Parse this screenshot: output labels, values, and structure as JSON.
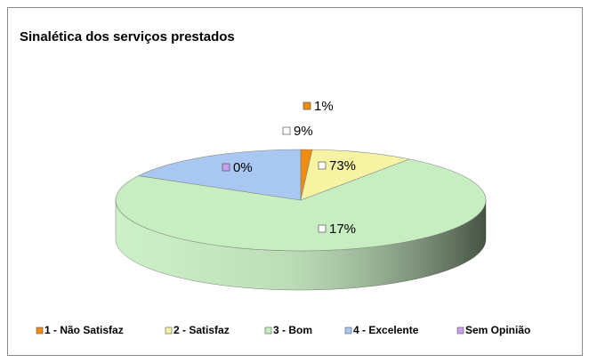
{
  "chart_data": {
    "type": "pie3d",
    "title": "Sinalética dos serviços prestados",
    "categories": [
      "1 - Não Satisfaz",
      "2 - Satisfaz",
      "3 - Bom",
      "4 - Excelente",
      "Sem Opinião"
    ],
    "values": [
      1,
      9,
      73,
      17,
      0
    ],
    "value_labels": [
      "1%",
      "9%",
      "73%",
      "17%",
      "0%"
    ],
    "colors": [
      "#f08c10",
      "#f6f4a2",
      "#c6eec0",
      "#a8c8f2",
      "#c8a0f0"
    ],
    "legend": "bottom"
  }
}
